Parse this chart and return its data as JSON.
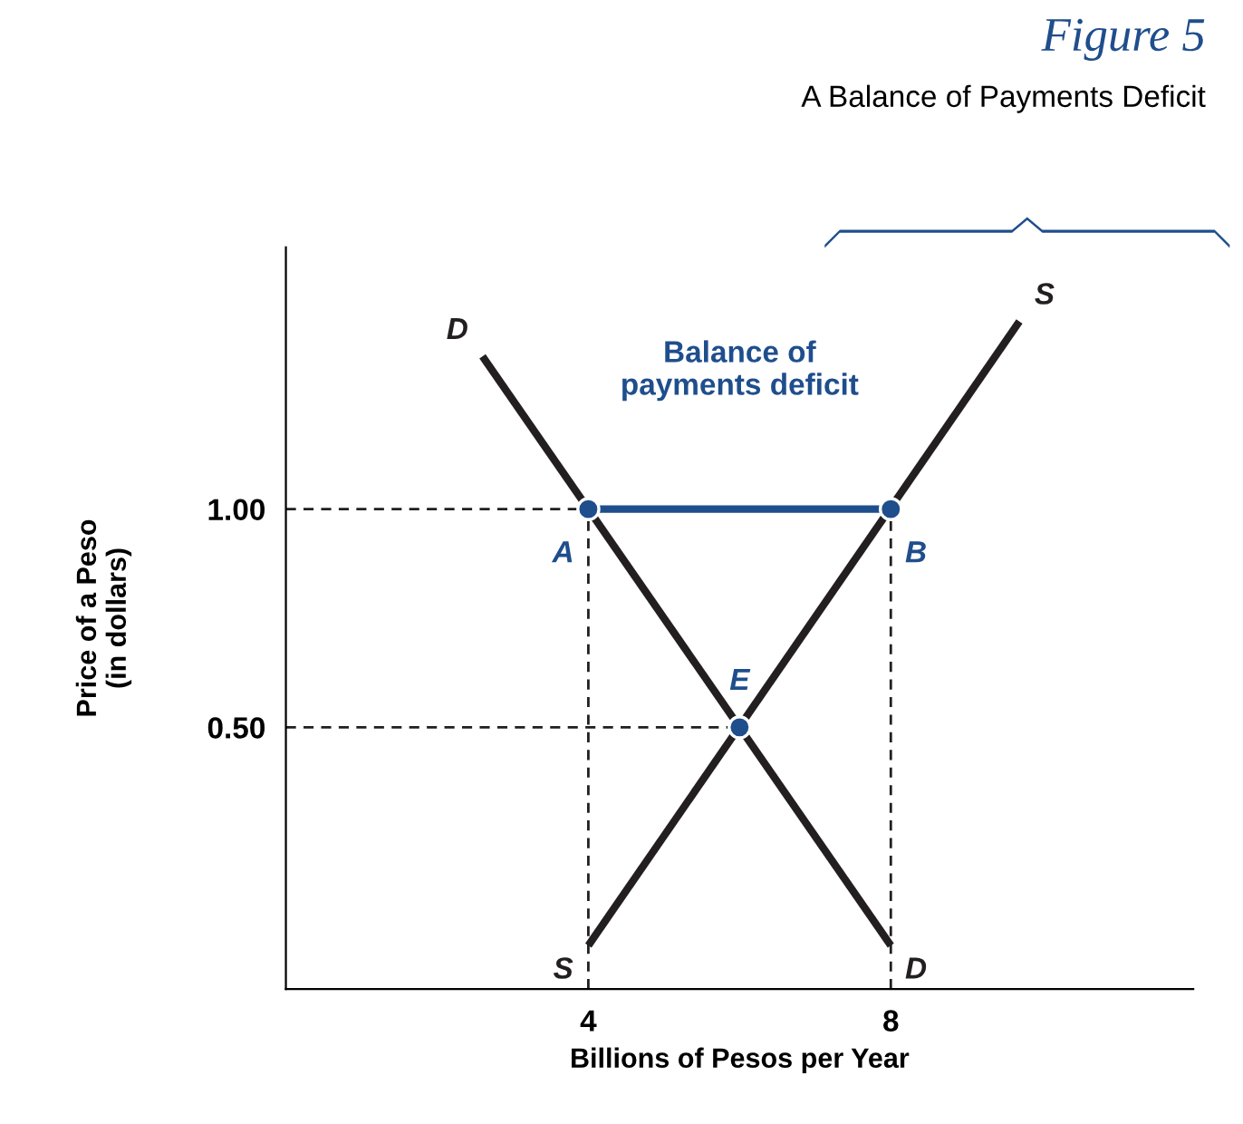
{
  "chart_data": {
    "type": "line",
    "title": "Figure 5",
    "subtitle": "A Balance of Payments Deficit",
    "xlabel": "Billions of Pesos per Year",
    "ylabel": "Price of a Peso\n(in dollars)",
    "xlim": [
      0,
      12
    ],
    "ylim": [
      -0.1,
      1.6
    ],
    "xticks": [
      4,
      8
    ],
    "yticks": [
      {
        "value": 0.5,
        "label": "0.50"
      },
      {
        "value": 1.0,
        "label": "1.00"
      }
    ],
    "grid": false,
    "legend": false,
    "series": [
      {
        "name": "D",
        "color": "#231f20",
        "x": [
          2.6,
          8
        ],
        "values": [
          1.35,
          0
        ]
      },
      {
        "name": "S",
        "color": "#231f20",
        "x": [
          4,
          9.7
        ],
        "values": [
          0,
          1.43
        ]
      },
      {
        "color": "#231f20",
        "line_style": "dashed",
        "x": [
          0,
          8
        ],
        "values": [
          1.0,
          1.0
        ]
      },
      {
        "color": "#231f20",
        "line_style": "dashed",
        "x": [
          0,
          6
        ],
        "values": [
          0.5,
          0.5
        ]
      },
      {
        "color": "#231f20",
        "line_style": "dashed",
        "x": [
          4,
          4
        ],
        "values": [
          -0.1,
          1.0
        ]
      },
      {
        "color": "#231f20",
        "line_style": "dashed",
        "x": [
          8,
          8
        ],
        "values": [
          -0.1,
          1.0
        ]
      },
      {
        "color": "#1f4e8c",
        "x": [
          4,
          8
        ],
        "values": [
          1.0,
          1.0
        ]
      },
      {
        "type": "scatter",
        "color": "#1f4e8c",
        "marker": "circle",
        "x": [
          4,
          8,
          6
        ],
        "values": [
          1.0,
          1.0,
          0.5
        ]
      }
    ],
    "annotations": [
      "A",
      "B",
      "E",
      "Balance of\npayments deficit"
    ]
  }
}
